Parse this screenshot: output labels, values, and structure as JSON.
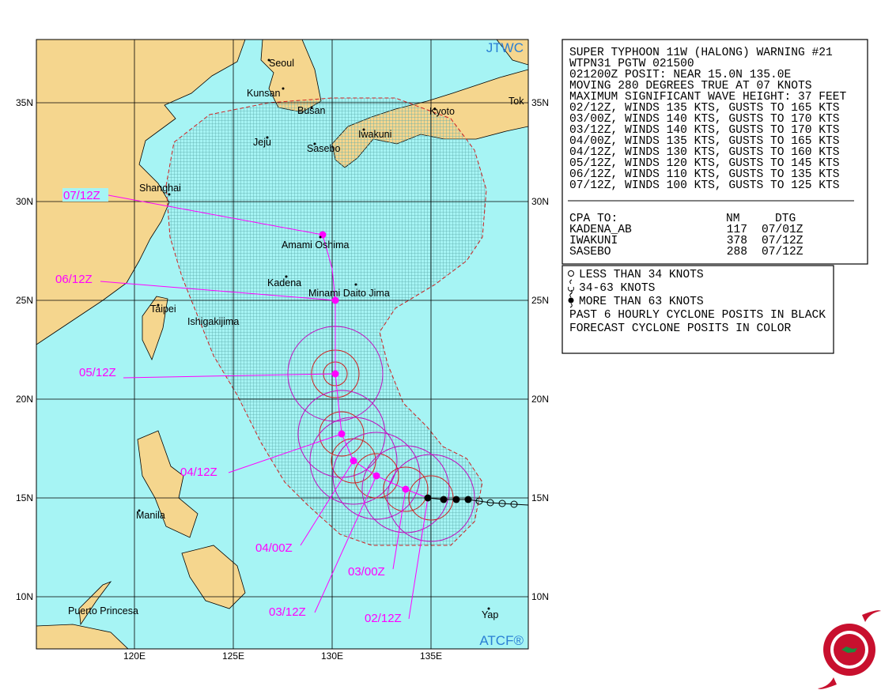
{
  "warning": {
    "lines": [
      "SUPER TYPHOON 11W (HALONG) WARNING #21",
      "WTPN31 PGTW 021500",
      "021200Z POSIT: NEAR 15.0N 135.0E",
      "MOVING 280 DEGREES TRUE AT 07 KNOTS",
      "MAXIMUM SIGNIFICANT WAVE HEIGHT: 37 FEET",
      "02/12Z, WINDS 135 KTS, GUSTS TO 165 KTS",
      "03/00Z, WINDS 140 KTS, GUSTS TO 170 KTS",
      "03/12Z, WINDS 140 KTS, GUSTS TO 170 KTS",
      "04/00Z, WINDS 135 KTS, GUSTS TO 165 KTS",
      "04/12Z, WINDS 130 KTS, GUSTS TO 160 KTS",
      "05/12Z, WINDS 120 KTS, GUSTS TO 145 KTS",
      "06/12Z, WINDS 110 KTS, GUSTS TO 135 KTS",
      "07/12Z, WINDS 100 KTS, GUSTS TO 125 KTS"
    ],
    "cpa": {
      "header": [
        "CPA TO:",
        "NM",
        "DTG"
      ],
      "rows": [
        [
          "KADENA_AB",
          117,
          "07/01Z"
        ],
        [
          "IWAKUNI",
          378,
          "07/12Z"
        ],
        [
          "SASEBO",
          288,
          "07/12Z"
        ]
      ]
    }
  },
  "legend": {
    "lines": [
      "LESS THAN 34 KNOTS",
      "34-63 KNOTS",
      "MORE THAN 63 KNOTS",
      "PAST 6 HOURLY CYCLONE POSITS IN BLACK",
      "FORECAST CYCLONE POSITS IN COLOR"
    ]
  },
  "map": {
    "lat_labels": [
      "35N",
      "30N",
      "25N",
      "20N",
      "15N",
      "10N"
    ],
    "lon_labels": [
      "120E",
      "125E",
      "130E",
      "135E"
    ],
    "source_top": "JTWC",
    "source_bottom": "ATCF®",
    "places": [
      "Seoul",
      "Kunsan",
      "Busan",
      "Jeju",
      "Sasebo",
      "Iwakuni",
      "Kyoto",
      "Tok",
      "Shanghai",
      "Amami Oshima",
      "Kadena",
      "Minami Daito Jima",
      "Taipei",
      "Ishigakijima",
      "Manila",
      "Puerto Princesa",
      "Yap"
    ],
    "forecast_labels": [
      "07/12Z",
      "06/12Z",
      "05/12Z",
      "04/12Z",
      "04/00Z",
      "03/12Z",
      "03/00Z",
      "02/12Z"
    ]
  }
}
